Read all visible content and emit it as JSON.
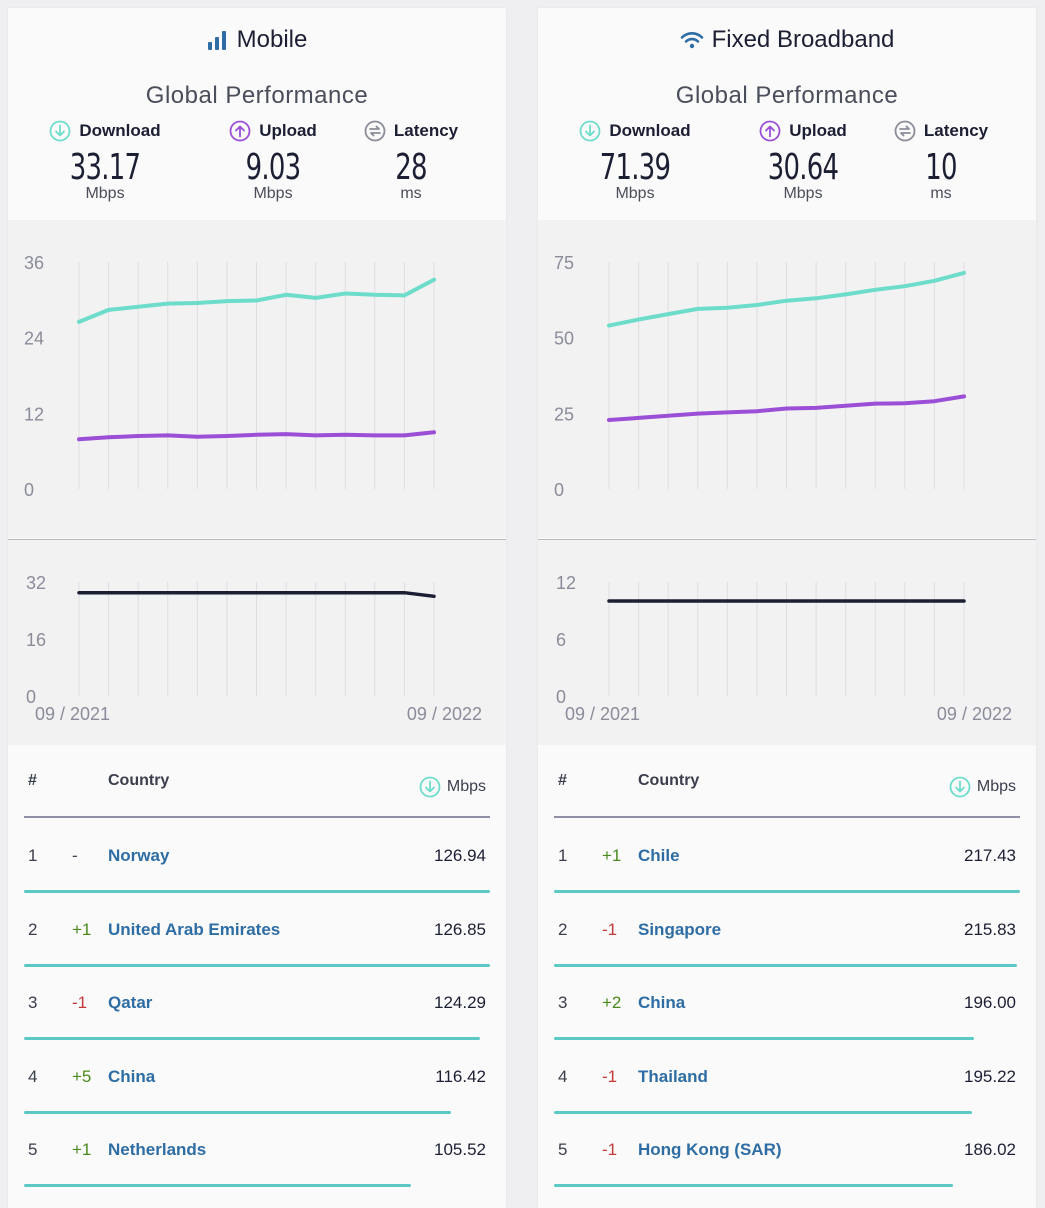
{
  "panels": [
    {
      "id": "mobile",
      "title": "Mobile",
      "icon": "signal-bars-icon",
      "subtitle": "Global Performance",
      "metrics": [
        {
          "label": "Download",
          "value": "33.17",
          "unit": "Mbps",
          "icon": "download-arrow-icon"
        },
        {
          "label": "Upload",
          "value": "9.03",
          "unit": "Mbps",
          "icon": "upload-arrow-icon"
        },
        {
          "label": "Latency",
          "value": "28",
          "unit": "ms",
          "icon": "latency-arrows-icon"
        }
      ],
      "speed_chart": {
        "y_ticks": [
          "36",
          "24",
          "12",
          "0"
        ],
        "ylim": [
          0,
          36
        ],
        "download": [
          26.5,
          28.4,
          28.9,
          29.4,
          29.5,
          29.8,
          29.9,
          30.8,
          30.3,
          31.0,
          30.8,
          30.7,
          33.2
        ],
        "upload": [
          7.9,
          8.2,
          8.4,
          8.5,
          8.3,
          8.4,
          8.6,
          8.7,
          8.5,
          8.6,
          8.5,
          8.5,
          9.0
        ]
      },
      "latency_chart": {
        "y_ticks": [
          "32",
          "16",
          "0"
        ],
        "ylim": [
          0,
          32
        ],
        "latency": [
          29,
          29,
          29,
          29,
          29,
          29,
          29,
          29,
          29,
          29,
          29,
          29,
          28
        ],
        "x_start": "09 / 2021",
        "x_end": "09 / 2022"
      },
      "table": {
        "col_rank": "#",
        "col_country": "Country",
        "col_speed": "Mbps",
        "rows": [
          {
            "rank": "1",
            "change": "-",
            "dir": "none",
            "country": "Norway",
            "speed": "126.94",
            "fraction": 1.0
          },
          {
            "rank": "2",
            "change": "+1",
            "dir": "up",
            "country": "United Arab Emirates",
            "speed": "126.85",
            "fraction": 0.9993
          },
          {
            "rank": "3",
            "change": "-1",
            "dir": "down",
            "country": "Qatar",
            "speed": "124.29",
            "fraction": 0.9791
          },
          {
            "rank": "4",
            "change": "+5",
            "dir": "up",
            "country": "China",
            "speed": "116.42",
            "fraction": 0.9171
          },
          {
            "rank": "5",
            "change": "+1",
            "dir": "up",
            "country": "Netherlands",
            "speed": "105.52",
            "fraction": 0.8313
          }
        ]
      }
    },
    {
      "id": "fixed",
      "title": "Fixed Broadband",
      "icon": "wifi-icon",
      "subtitle": "Global Performance",
      "metrics": [
        {
          "label": "Download",
          "value": "71.39",
          "unit": "Mbps",
          "icon": "download-arrow-icon"
        },
        {
          "label": "Upload",
          "value": "30.64",
          "unit": "Mbps",
          "icon": "upload-arrow-icon"
        },
        {
          "label": "Latency",
          "value": "10",
          "unit": "ms",
          "icon": "latency-arrows-icon"
        }
      ],
      "speed_chart": {
        "y_ticks": [
          "75",
          "50",
          "25",
          "0"
        ],
        "ylim": [
          0,
          75
        ],
        "download": [
          54.0,
          56.0,
          57.8,
          59.5,
          59.9,
          60.8,
          62.2,
          63.0,
          64.3,
          65.8,
          67.0,
          68.8,
          71.4
        ],
        "upload": [
          22.8,
          23.5,
          24.2,
          24.9,
          25.3,
          25.7,
          26.6,
          26.8,
          27.5,
          28.2,
          28.3,
          29.0,
          30.6
        ]
      },
      "latency_chart": {
        "y_ticks": [
          "12",
          "6",
          "0"
        ],
        "ylim": [
          0,
          12
        ],
        "latency": [
          10,
          10,
          10,
          10,
          10,
          10,
          10,
          10,
          10,
          10,
          10,
          10,
          10
        ],
        "x_start": "09 / 2021",
        "x_end": "09 / 2022"
      },
      "table": {
        "col_rank": "#",
        "col_country": "Country",
        "col_speed": "Mbps",
        "rows": [
          {
            "rank": "1",
            "change": "+1",
            "dir": "up",
            "country": "Chile",
            "speed": "217.43",
            "fraction": 1.0
          },
          {
            "rank": "2",
            "change": "-1",
            "dir": "down",
            "country": "Singapore",
            "speed": "215.83",
            "fraction": 0.9926
          },
          {
            "rank": "3",
            "change": "+2",
            "dir": "up",
            "country": "China",
            "speed": "196.00",
            "fraction": 0.9014
          },
          {
            "rank": "4",
            "change": "-1",
            "dir": "down",
            "country": "Thailand",
            "speed": "195.22",
            "fraction": 0.8979
          },
          {
            "rank": "5",
            "change": "-1",
            "dir": "down",
            "country": "Hong Kong (SAR)",
            "speed": "186.02",
            "fraction": 0.8555
          }
        ]
      }
    }
  ],
  "colors": {
    "download": "#6edccb",
    "upload": "#9b4fd6",
    "latency_line": "#1c1f33",
    "latency_icon": "#8a8c99",
    "bar": "#5cc8c4",
    "accent": "#2e6da4"
  }
}
